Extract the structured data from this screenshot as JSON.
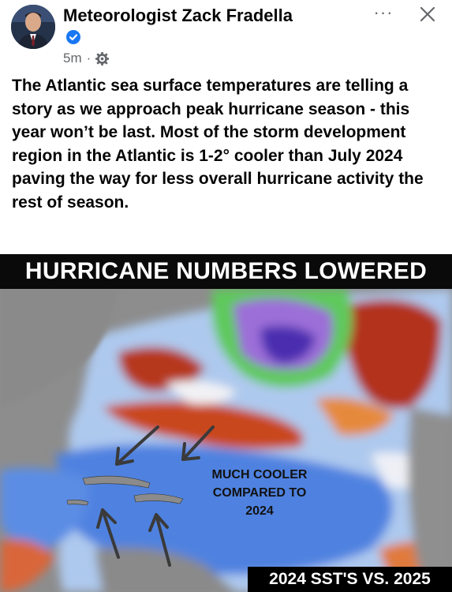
{
  "post": {
    "author": "Meteorologist Zack Fradella",
    "time": "5m",
    "separator": "·",
    "text": "The Atlantic sea surface temperatures are telling a story as we approach peak hurricane season - this year won’t be last. Most of the storm development region in the Atlantic is 1-2° cooler than July 2024 paving the way for less overall hurricane activity the rest of season."
  },
  "controls": {
    "more": "···"
  },
  "icons": {
    "verified": "verified-badge-icon",
    "audience": "globe-icon",
    "more": "more-options-icon",
    "close": "close-icon"
  },
  "colors": {
    "verified": "#1877f2",
    "secondary_text": "#65676b",
    "banner_bg": "#0a0a0a"
  },
  "media": {
    "banner": "HURRICANE NUMBERS LOWERED",
    "annotation_lines": [
      "MUCH COOLER",
      "COMPARED TO",
      "2024"
    ],
    "footer_label": "2024 SST'S VS. 2025"
  }
}
